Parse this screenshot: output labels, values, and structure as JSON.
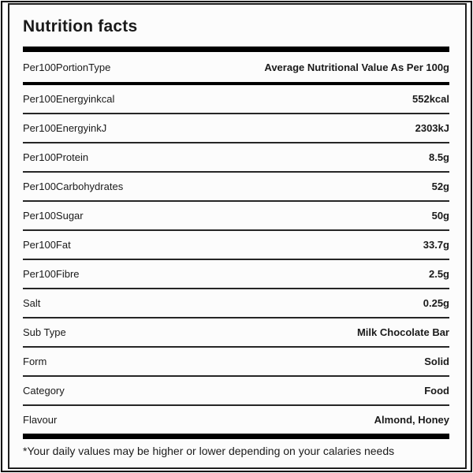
{
  "title": "Nutrition facts",
  "header": {
    "label": "Per100PortionType",
    "value": "Average Nutritional Value As Per 100g"
  },
  "rows": [
    {
      "label": "Per100Energyinkcal",
      "value": "552kcal"
    },
    {
      "label": "Per100EnergyinkJ",
      "value": "2303kJ"
    },
    {
      "label": "Per100Protein",
      "value": "8.5g"
    },
    {
      "label": "Per100Carbohydrates",
      "value": "52g"
    },
    {
      "label": "Per100Sugar",
      "value": "50g"
    },
    {
      "label": "Per100Fat",
      "value": "33.7g"
    },
    {
      "label": "Per100Fibre",
      "value": "2.5g"
    },
    {
      "label": "Salt",
      "value": "0.25g"
    },
    {
      "label": "Sub Type",
      "value": "Milk Chocolate Bar"
    },
    {
      "label": "Form",
      "value": "Solid"
    },
    {
      "label": "Category",
      "value": "Food"
    },
    {
      "label": "Flavour",
      "value": "Almond, Honey"
    }
  ],
  "footer": "*Your daily values may be higher or lower depending on your calaries needs",
  "colors": {
    "text": "#1a1a1a",
    "bar": "#000000",
    "divider": "#262626",
    "border": "#1f1f1f",
    "background": "#fcfcfc"
  }
}
